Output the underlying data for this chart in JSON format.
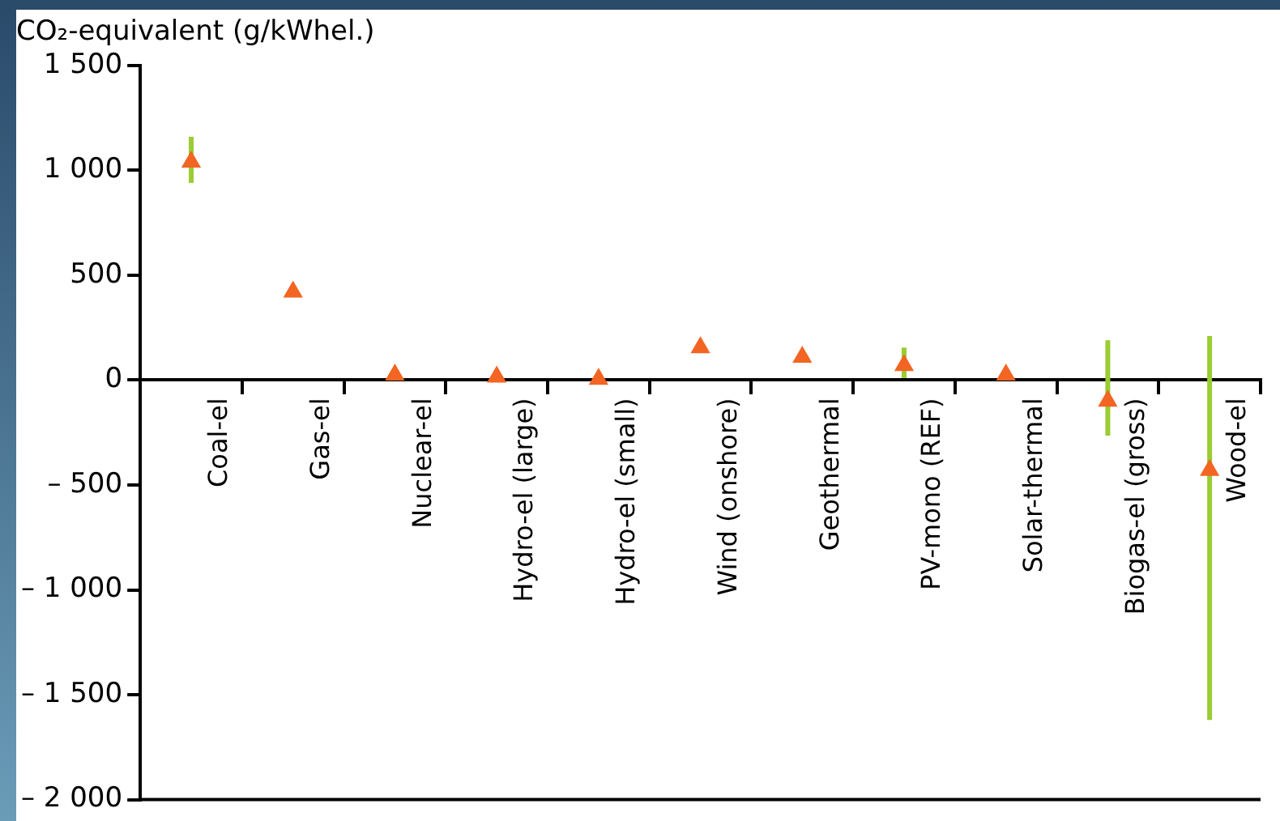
{
  "chart_data": {
    "type": "scatter",
    "ylabel": "CO₂-equivalent (g/kWhel.)",
    "categories": [
      "Coal-el",
      "Gas-el",
      "Nuclear-el",
      "Hydro-el (large)",
      "Hydro-el (small)",
      "Wind (onshore)",
      "Geothermal",
      "PV-mono (REF)",
      "Solar-thermal",
      "Biogas-el (gross)",
      "Wood-el"
    ],
    "series": [
      {
        "color": "#f26522",
        "values": [
          1040,
          420,
          25,
          15,
          5,
          155,
          110,
          70,
          25,
          -100,
          -430
        ],
        "errors": [
          [
            940,
            1160
          ],
          null,
          null,
          null,
          null,
          null,
          null,
          [
            10,
            155
          ],
          null,
          [
            -265,
            190
          ],
          [
            -1620,
            210
          ]
        ]
      }
    ],
    "marker": "triangle",
    "ylim": [
      -2000,
      1500
    ],
    "yticks": [
      {
        "value": -2000,
        "label": "– 2 000"
      },
      {
        "value": -1500,
        "label": "– 1 500"
      },
      {
        "value": -1000,
        "label": "– 1 000"
      },
      {
        "value": -500,
        "label": "– 500"
      },
      0,
      500,
      {
        "value": 1000,
        "label": "1 000"
      },
      {
        "value": 1500,
        "label": "1 500"
      }
    ],
    "grid": false,
    "legend": false
  }
}
